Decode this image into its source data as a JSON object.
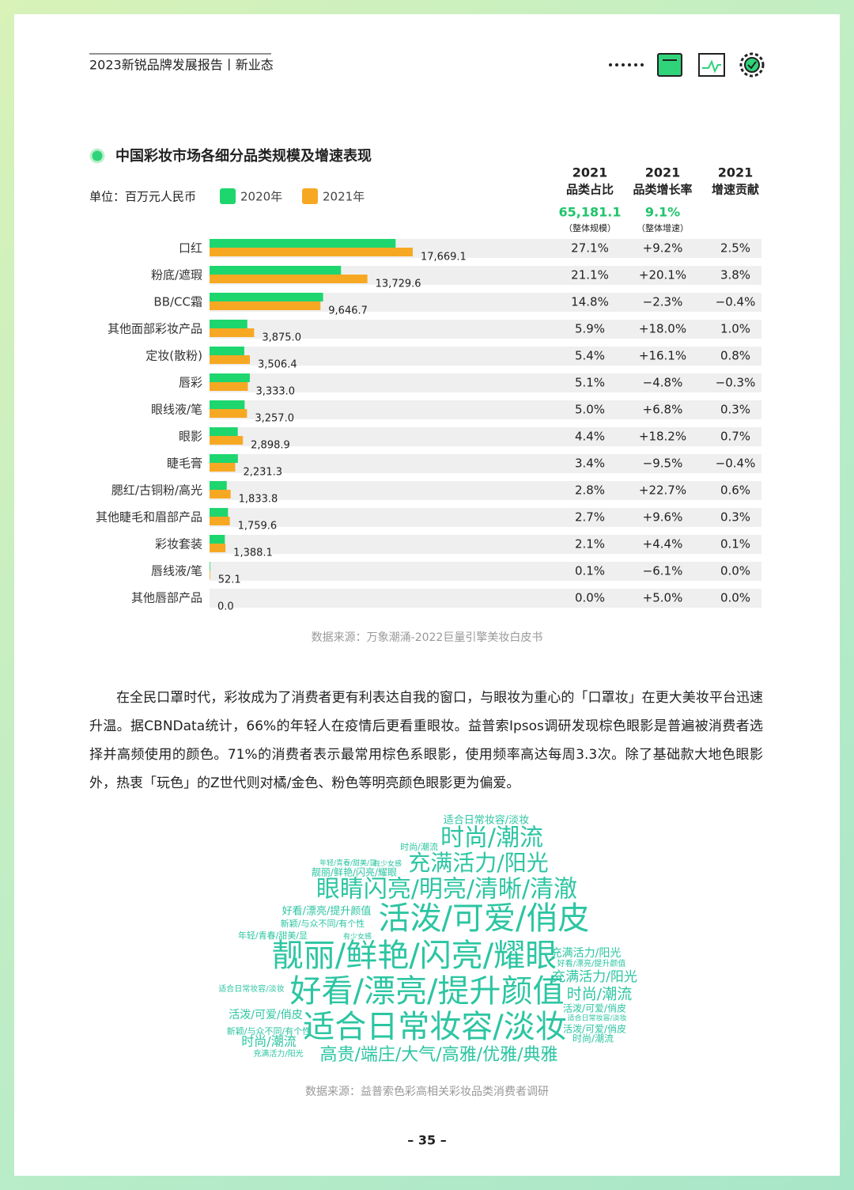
{
  "header": {
    "title": "2023新锐品牌发展报告丨新业态"
  },
  "chart_data": {
    "type": "bar",
    "title": "中国彩妆市场各细分品类规模及增速表现",
    "unit": "单位：百万元人民币",
    "categories": [
      "口红",
      "粉底/遮瑕",
      "BB/CC霜",
      "其他面部彩妆产品",
      "定妆(散粉)",
      "唇彩",
      "眼线液/笔",
      "眼影",
      "睫毛膏",
      "腮红/古铜粉/高光",
      "其他睫毛和眉部产品",
      "彩妆套装",
      "唇线液/笔",
      "其他唇部产品"
    ],
    "series": [
      {
        "name": "2020年",
        "color": "#1ed66e",
        "values": [
          16180,
          11432,
          9874,
          3284,
          3020,
          3501,
          3050,
          2453,
          2465,
          1494,
          1605,
          1330,
          55,
          0
        ]
      },
      {
        "name": "2021年",
        "color": "#f7a823",
        "values": [
          17669.1,
          13729.6,
          9646.7,
          3875.0,
          3506.4,
          3333.0,
          3257.0,
          2898.9,
          2231.3,
          1833.8,
          1759.6,
          1388.1,
          52.1,
          0.0
        ],
        "value_labels": [
          "17,669.1",
          "13,729.6",
          "9,646.7",
          "3,875.0",
          "3,506.4",
          "3,333.0",
          "3,257.0",
          "2,898.9",
          "2,231.3",
          "1,833.8",
          "1,759.6",
          "1,388.1",
          "52.1",
          "0.0"
        ]
      }
    ],
    "xlim": [
      0,
      48000
    ],
    "source": "数据来源：万象潮涌-2022巨量引擎美妆白皮书"
  },
  "table": {
    "columns": [
      [
        "2021",
        "品类占比"
      ],
      [
        "2021",
        "品类增长率"
      ],
      [
        "2021",
        "增速贡献"
      ]
    ],
    "summary": [
      "65,181.1",
      "9.1%"
    ],
    "summary_notes": [
      "（整体规模）",
      "（整体增速）"
    ],
    "rows": [
      [
        "27.1%",
        "+9.2%",
        "2.5%"
      ],
      [
        "21.1%",
        "+20.1%",
        "3.8%"
      ],
      [
        "14.8%",
        "−2.3%",
        "−0.4%"
      ],
      [
        "5.9%",
        "+18.0%",
        "1.0%"
      ],
      [
        "5.4%",
        "+16.1%",
        "0.8%"
      ],
      [
        "5.1%",
        "−4.8%",
        "−0.3%"
      ],
      [
        "5.0%",
        "+6.8%",
        "0.3%"
      ],
      [
        "4.4%",
        "+18.2%",
        "0.7%"
      ],
      [
        "3.4%",
        "−9.5%",
        "−0.4%"
      ],
      [
        "2.8%",
        "+22.7%",
        "0.6%"
      ],
      [
        "2.7%",
        "+9.6%",
        "0.3%"
      ],
      [
        "2.1%",
        "+4.4%",
        "0.1%"
      ],
      [
        "0.1%",
        "−6.1%",
        "0.0%"
      ],
      [
        "0.0%",
        "+5.0%",
        "0.0%"
      ]
    ]
  },
  "paragraph": "在全民口罩时代，彩妆成为了消费者更有利表达自我的窗口，与眼妆为重心的「口罩妆」在更大美妆平台迅速升温。据CBNData统计，66%的年轻人在疫情后更看重眼妆。益普索Ipsos调研发现棕色眼影是普遍被消费者选择并高频使用的颜色。71%的消费者表示最常用棕色系眼影，使用频率高达每周3.3次。除了基础款大地色眼影外，热衷「玩色」的Z世代则对橘/金色、粉色等明亮颜色眼影更为偏爱。",
  "wordcloud": {
    "color": "#2cc5a2",
    "words": [
      "适合日常妆容/淡妆",
      "时尚/潮流",
      "时尚/潮流",
      "充满活力/阳光",
      "年轻/青春/甜美/显",
      "有少女感",
      "靓丽/鲜艳/闪亮/耀眼",
      "眼睛闪亮/明亮/清晰/清澈",
      "好看/漂亮/提升颜值",
      "新颖/与众不同/有个性",
      "活泼/可爱/俏皮",
      "年轻/青春/甜美/显",
      "有少女感",
      "靓丽/鲜艳/闪亮/耀眼",
      "充满活力/阳光",
      "好看/漂亮/提升颜值",
      "充满活力/阳光",
      "适合日常妆容/淡妆",
      "好看/漂亮/提升颜值",
      "时尚/潮流",
      "活泼/可爱/俏皮",
      "活泼/可爱/俏皮",
      "适合日常妆容/淡妆",
      "适合日常妆容/淡妆",
      "新颖/与众不同/有个性",
      "活泼/可爱/俏皮",
      "时尚/潮流",
      "时尚/潮流",
      "充满活力/阳光",
      "高贵/端庄/大气/高雅/优雅/典雅"
    ],
    "source": "数据来源：益普索色彩高相关彩妆品类消费者调研"
  },
  "page_number": "– 35 –"
}
